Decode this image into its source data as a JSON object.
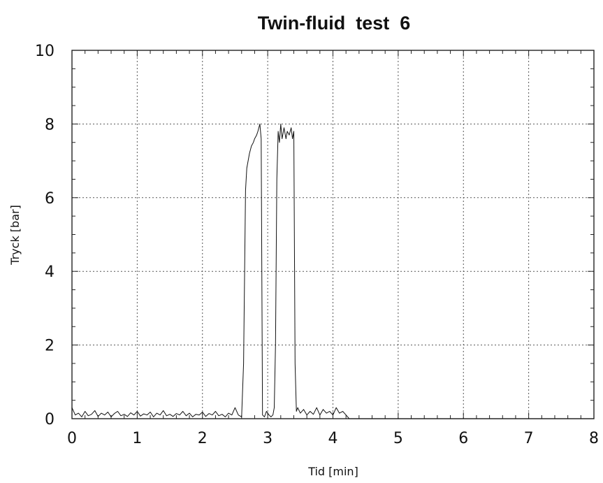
{
  "chart_data": {
    "type": "line",
    "title": "Twin-fluid  test  6",
    "xlabel": "Tid [min]",
    "ylabel": "Tryck [bar]",
    "xlim": [
      0,
      8
    ],
    "ylim": [
      0,
      10
    ],
    "x_ticks": [
      "0",
      "1",
      "2",
      "3",
      "4",
      "5",
      "6",
      "7",
      "8"
    ],
    "y_ticks": [
      "0",
      "2",
      "4",
      "6",
      "8",
      "10"
    ],
    "grid": true,
    "series": [
      {
        "color": "#111111",
        "x": [
          0.0,
          0.05,
          0.1,
          0.15,
          0.2,
          0.25,
          0.3,
          0.35,
          0.4,
          0.45,
          0.5,
          0.55,
          0.6,
          0.65,
          0.7,
          0.75,
          0.8,
          0.85,
          0.9,
          0.95,
          1.0,
          1.05,
          1.1,
          1.15,
          1.2,
          1.25,
          1.3,
          1.35,
          1.4,
          1.45,
          1.5,
          1.55,
          1.6,
          1.65,
          1.7,
          1.75,
          1.8,
          1.85,
          1.9,
          1.95,
          2.0,
          2.05,
          2.1,
          2.15,
          2.2,
          2.25,
          2.3,
          2.35,
          2.4,
          2.45,
          2.5,
          2.55,
          2.6,
          2.63,
          2.66,
          2.68,
          2.7,
          2.72,
          2.75,
          2.78,
          2.8,
          2.83,
          2.85,
          2.88,
          2.9,
          2.92,
          2.95,
          2.98,
          3.0,
          3.02,
          3.05,
          3.08,
          3.1,
          3.12,
          3.14,
          3.16,
          3.18,
          3.2,
          3.22,
          3.25,
          3.28,
          3.3,
          3.33,
          3.36,
          3.38,
          3.4,
          3.42,
          3.44,
          3.46,
          3.5,
          3.55,
          3.6,
          3.65,
          3.7,
          3.75,
          3.8,
          3.85,
          3.9,
          3.95,
          4.0,
          4.05,
          4.1,
          4.15,
          4.2,
          4.25,
          4.5,
          5.0,
          6.0,
          7.0,
          8.0
        ],
        "y": [
          0.3,
          0.1,
          0.15,
          0.05,
          0.2,
          0.08,
          0.12,
          0.22,
          0.06,
          0.15,
          0.1,
          0.18,
          0.05,
          0.14,
          0.2,
          0.08,
          0.12,
          0.06,
          0.16,
          0.1,
          0.2,
          0.07,
          0.13,
          0.1,
          0.18,
          0.05,
          0.15,
          0.1,
          0.22,
          0.08,
          0.12,
          0.06,
          0.14,
          0.1,
          0.2,
          0.08,
          0.15,
          0.05,
          0.12,
          0.1,
          0.18,
          0.06,
          0.14,
          0.1,
          0.2,
          0.08,
          0.12,
          0.05,
          0.15,
          0.1,
          0.3,
          0.1,
          0.05,
          1.5,
          6.2,
          6.8,
          7.0,
          7.2,
          7.4,
          7.5,
          7.6,
          7.7,
          7.8,
          8.0,
          7.6,
          0.1,
          0.05,
          0.2,
          0.15,
          0.1,
          0.05,
          0.1,
          0.3,
          2.0,
          6.5,
          7.8,
          7.5,
          8.0,
          7.6,
          7.9,
          7.6,
          7.8,
          7.7,
          7.9,
          7.6,
          7.8,
          1.5,
          0.2,
          0.3,
          0.15,
          0.25,
          0.1,
          0.2,
          0.12,
          0.3,
          0.1,
          0.25,
          0.15,
          0.2,
          0.1,
          0.3,
          0.15,
          0.2,
          0.1,
          0.0,
          0.0,
          0.0,
          0.0,
          0.0,
          0.0
        ]
      }
    ]
  }
}
